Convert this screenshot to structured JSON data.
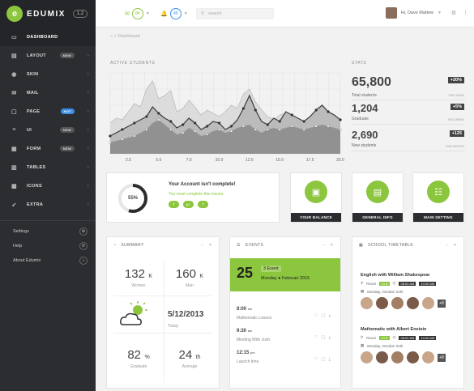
{
  "brand": {
    "name": "EDUMIX",
    "version": "1.2"
  },
  "sidebar": {
    "items": [
      {
        "label": "DASHBOARD",
        "icon": "monitor-icon",
        "badge": ""
      },
      {
        "label": "LAYOUT",
        "icon": "layout-icon",
        "badge": "NEW"
      },
      {
        "label": "SKIN",
        "icon": "eye-icon",
        "badge": ""
      },
      {
        "label": "MAIL",
        "icon": "mail-icon",
        "badge": ""
      },
      {
        "label": "PAGE",
        "icon": "page-icon",
        "badge": "HOT"
      },
      {
        "label": "UI",
        "icon": "list-icon",
        "badge": "NEW"
      },
      {
        "label": "FORM",
        "icon": "form-icon",
        "badge": "NEW"
      },
      {
        "label": "TABLES",
        "icon": "table-icon",
        "badge": ""
      },
      {
        "label": "ICONS",
        "icon": "grid-icon",
        "badge": ""
      },
      {
        "label": "EXTRA",
        "icon": "rocket-icon",
        "badge": ""
      }
    ],
    "links": [
      {
        "label": "Settings",
        "icon": "gear-icon"
      },
      {
        "label": "Help",
        "icon": "phone-icon"
      },
      {
        "label": "About Edumix",
        "icon": "music-icon"
      }
    ]
  },
  "topbar": {
    "mail_count": "84",
    "alert_count": "45",
    "search_placeholder": "search",
    "user_greeting": "Hi, Dave Mattew"
  },
  "breadcrumb": "Dashboard",
  "active_students": {
    "title": "ACTIVE STUDENTS",
    "chart_data": {
      "type": "area",
      "x": [
        1,
        1.5,
        2,
        2.5,
        3,
        3.5,
        4,
        4.5,
        5,
        5.5,
        6,
        6.5,
        7,
        7.5,
        8,
        8.5,
        9,
        9.5,
        10,
        10.5,
        11,
        11.5,
        12,
        12.5,
        13,
        13.5,
        14,
        14.5,
        15,
        15.5,
        16,
        16.5,
        17,
        17.5,
        18,
        18.5,
        19,
        19.5,
        20
      ],
      "xticks": [
        "2.5",
        "5.0",
        "7.5",
        "10.0",
        "12.5",
        "15.0",
        "17.5",
        "20.0"
      ],
      "series": [
        {
          "values": [
            38,
            44,
            42,
            52,
            62,
            58,
            80,
            90,
            68,
            72,
            78,
            52,
            56,
            66,
            58,
            48,
            54,
            50,
            46,
            52,
            60,
            56,
            74,
            80,
            64,
            54,
            46,
            42,
            48,
            50,
            44,
            40,
            36,
            42,
            50,
            58,
            52,
            46,
            42
          ]
        },
        {
          "values": [
            22,
            26,
            30,
            34,
            38,
            42,
            46,
            58,
            50,
            44,
            40,
            32,
            36,
            44,
            38,
            30,
            34,
            40,
            38,
            30,
            34,
            42,
            56,
            72,
            54,
            40,
            36,
            44,
            40,
            52,
            48,
            44,
            40,
            46,
            54,
            60,
            52,
            48,
            42
          ]
        },
        {
          "values": [
            14,
            16,
            18,
            20,
            22,
            26,
            30,
            38,
            42,
            36,
            30,
            24,
            26,
            32,
            28,
            22,
            24,
            28,
            30,
            26,
            28,
            32,
            34,
            36,
            30,
            26,
            30,
            32,
            30,
            32,
            34,
            32,
            30,
            32,
            34,
            36,
            34,
            32,
            30
          ]
        }
      ],
      "ylim": [
        0,
        100
      ]
    }
  },
  "stats": {
    "title": "STATS",
    "rows": [
      {
        "value": "65,800",
        "label": "Total students",
        "pct": "+20%",
        "period": "THIS YEAR"
      },
      {
        "value": "1,204",
        "label": "Graduate",
        "pct": "+5%",
        "period": "THIS WEEK"
      },
      {
        "value": "2,690",
        "label": "New students",
        "pct": "+125",
        "period": "THIS MONTH"
      }
    ]
  },
  "account": {
    "percent": "55%",
    "progress": 0.55,
    "title": "Your Account isn't complete!",
    "subtitle": "You must complete this Issues."
  },
  "tiles": [
    {
      "label": "YOUR BALANCE",
      "icon": "wallet-icon"
    },
    {
      "label": "GENERAL INFO",
      "icon": "notebook-icon"
    },
    {
      "label": "MAIN SETTING",
      "icon": "sliders-icon"
    }
  ],
  "summary": {
    "title": "SUMMARY",
    "women": {
      "value": "132",
      "unit": "K",
      "label": "Women"
    },
    "men": {
      "value": "160",
      "unit": "K",
      "label": "Man"
    },
    "date": {
      "value": "5/12/2013",
      "label": "Today"
    },
    "graduate": {
      "value": "82",
      "unit": "%",
      "label": "Graduate"
    },
    "average": {
      "value": "24",
      "unit": "th",
      "label": "Average"
    }
  },
  "events": {
    "title": "EVENTS",
    "day": "25",
    "count_label": "3 Event",
    "date_label": "Monday",
    "date_full": "Februari 2015",
    "items": [
      {
        "time": "8:00",
        "ampm": "am",
        "title": "Mathematic Lesson"
      },
      {
        "time": "9:30",
        "ampm": "am",
        "title": "Meeting With Josh"
      },
      {
        "time": "12:15",
        "ampm": "pm",
        "title": "Launch time"
      }
    ]
  },
  "timetable": {
    "title": "SCHOOL TIMETABLE",
    "blocks": [
      {
        "title": "English with William Shakespear",
        "room_label": "Room",
        "room": "13 B",
        "start": "08:00 AM",
        "end": "10:00 AM",
        "date": "Monday, October 21th",
        "more": "+8"
      },
      {
        "title": "Mathematic with Albert Enstein",
        "room_label": "Room",
        "room": "13 B",
        "start": "08:00 AM",
        "end": "10:00 AM",
        "date": "Monday, October 21th",
        "more": "+8"
      }
    ]
  },
  "colors": {
    "accent": "#8cc63f",
    "sidebar": "#2b2d30",
    "blue": "#3a8ee6"
  }
}
